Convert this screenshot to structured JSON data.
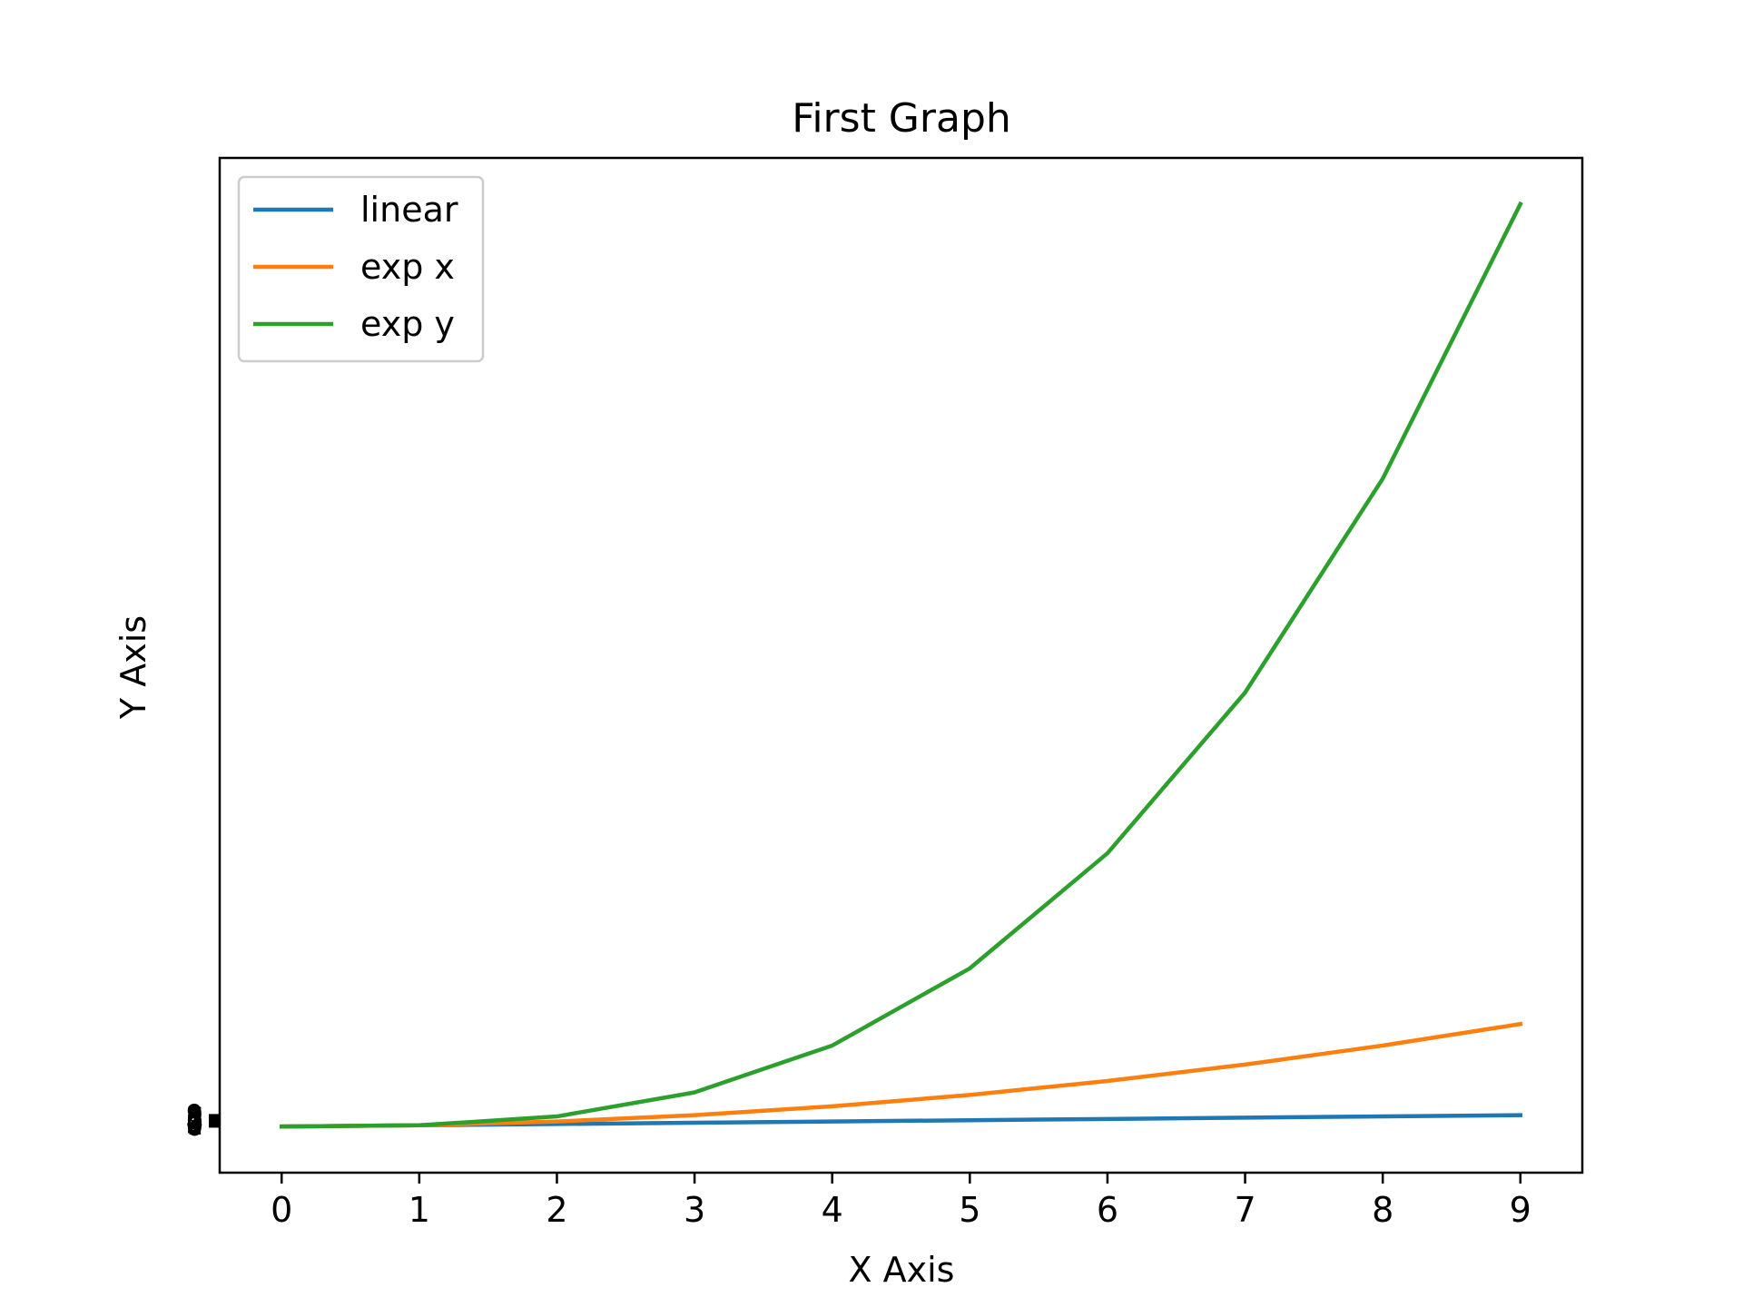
{
  "chart_data": {
    "type": "line",
    "title": "First Graph",
    "xlabel": "X Axis",
    "ylabel": "Y Axis",
    "x": [
      0,
      1,
      2,
      3,
      4,
      5,
      6,
      7,
      8,
      9
    ],
    "xlim": [
      -0.45,
      9.45
    ],
    "ylim": [
      -36.45,
      765.45
    ],
    "xticks": [
      "0",
      "1",
      "2",
      "3",
      "4",
      "5",
      "6",
      "7",
      "8",
      "9"
    ],
    "yticks": [
      0,
      1,
      2,
      3,
      4,
      5,
      6,
      7,
      8,
      9
    ],
    "grid": false,
    "legend_position": "top-left",
    "series": [
      {
        "name": "linear",
        "color": "#1f77b4",
        "values": [
          0,
          1,
          2,
          3,
          4,
          5,
          6,
          7,
          8,
          9
        ]
      },
      {
        "name": "exp x",
        "color": "#ff7f0e",
        "values": [
          0,
          1,
          4,
          9,
          16,
          25,
          36,
          49,
          64,
          81
        ]
      },
      {
        "name": "exp y",
        "color": "#2ca02c",
        "values": [
          0,
          1,
          8,
          27,
          64,
          125,
          216,
          343,
          512,
          729
        ]
      }
    ]
  }
}
